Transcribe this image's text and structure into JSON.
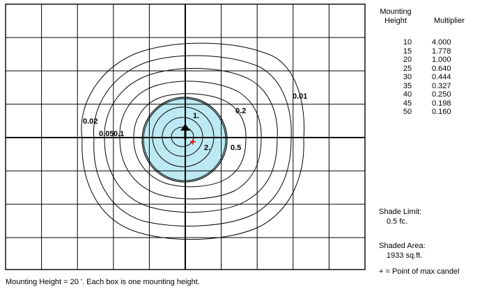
{
  "table": {
    "header_height_line1": "Mounting",
    "header_height_line2": "Height",
    "header_multiplier": "Multiplier",
    "rows": [
      {
        "height": "10",
        "multiplier": "4.000"
      },
      {
        "height": "15",
        "multiplier": "1.778"
      },
      {
        "height": "20",
        "multiplier": "1.000"
      },
      {
        "height": "25",
        "multiplier": "0.640"
      },
      {
        "height": "30",
        "multiplier": "0.444"
      },
      {
        "height": "35",
        "multiplier": "0.327"
      },
      {
        "height": "40",
        "multiplier": "0.250"
      },
      {
        "height": "45",
        "multiplier": "0.198"
      },
      {
        "height": "50",
        "multiplier": "0.160"
      }
    ]
  },
  "shade_limit": {
    "label": "Shade Limit:",
    "value": "0.5 fc."
  },
  "shaded_area": {
    "label": "Shaded Area:",
    "value": "1933 sq.ft."
  },
  "legend_note": "+ = Point of max candel",
  "footer_note": "Mounting Height = 20 '.  Each box is one mounting height.",
  "contours": {
    "labels": [
      "0.01",
      "0.02",
      "0.05",
      "0.1",
      "0.2",
      "0.5",
      "1.",
      "2."
    ]
  },
  "colors": {
    "shaded": "#bde9f2",
    "grid": "#000000",
    "max_point": "#e00000"
  }
}
